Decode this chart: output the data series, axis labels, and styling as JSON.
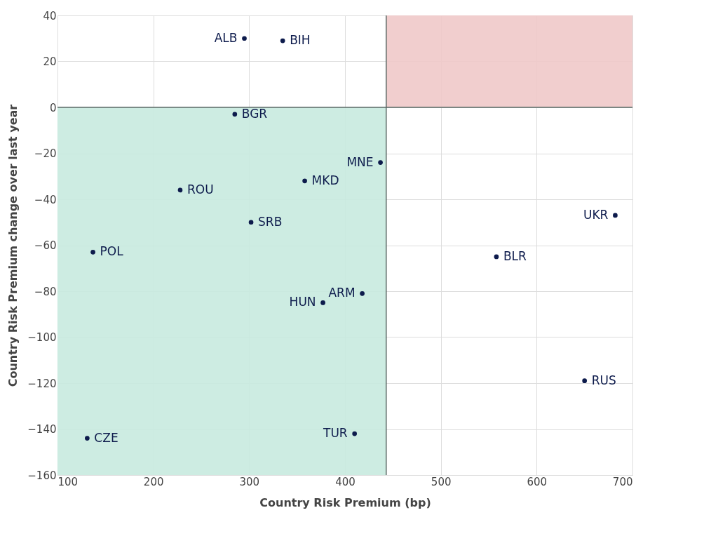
{
  "chart_data": {
    "type": "scatter",
    "xlabel": "Country Risk Premium (bp)",
    "ylabel": "Country Risk Premium change over last year",
    "xlim": [
      100,
      700
    ],
    "xticks": [
      100,
      200,
      300,
      400,
      500,
      600,
      700
    ],
    "ylim": [
      -160,
      40
    ],
    "yticks": [
      -160,
      -140,
      -120,
      -100,
      -80,
      -60,
      -40,
      -20,
      0,
      20,
      40
    ],
    "grid": true,
    "marker": "circle",
    "series": [
      {
        "color": "#0d1b4c",
        "x": [
          295,
          335,
          285,
          437,
          358,
          228,
          302,
          137,
          682,
          558,
          418,
          377,
          650,
          410,
          131
        ],
        "values": [
          30,
          29,
          -3,
          -24,
          -32,
          -36,
          -50,
          -63,
          -47,
          -65,
          -81,
          -85,
          -119,
          -142,
          -144
        ]
      }
    ],
    "ref_lines": [
      {
        "axis": "y",
        "value": 0,
        "color": "#5a6a66"
      },
      {
        "axis": "x",
        "value": 443,
        "color": "#5a6a66"
      }
    ],
    "bands": [
      {
        "axis": "x",
        "from": 100,
        "to": 443,
        "color": "#c8eadf"
      },
      {
        "axis": "x",
        "from": 443,
        "to": 700,
        "color": "#f0c9c9"
      }
    ],
    "annotations": [
      {
        "text": "ALB",
        "x": 295,
        "y": 30
      },
      {
        "text": "BIH",
        "x": 335,
        "y": 29
      },
      {
        "text": "BGR",
        "x": 285,
        "y": -3
      },
      {
        "text": "MNE",
        "x": 437,
        "y": -24
      },
      {
        "text": "MKD",
        "x": 358,
        "y": -32
      },
      {
        "text": "ROU",
        "x": 228,
        "y": -36
      },
      {
        "text": "SRB",
        "x": 302,
        "y": -50
      },
      {
        "text": "POL",
        "x": 137,
        "y": -63
      },
      {
        "text": "UKR",
        "x": 682,
        "y": -47
      },
      {
        "text": "BLR",
        "x": 558,
        "y": -65
      },
      {
        "text": "ARM",
        "x": 418,
        "y": -81
      },
      {
        "text": "HUN",
        "x": 377,
        "y": -85
      },
      {
        "text": "RUS",
        "x": 650,
        "y": -119
      },
      {
        "text": "TUR",
        "x": 410,
        "y": -142
      },
      {
        "text": "CZE",
        "x": 131,
        "y": -144
      }
    ]
  }
}
